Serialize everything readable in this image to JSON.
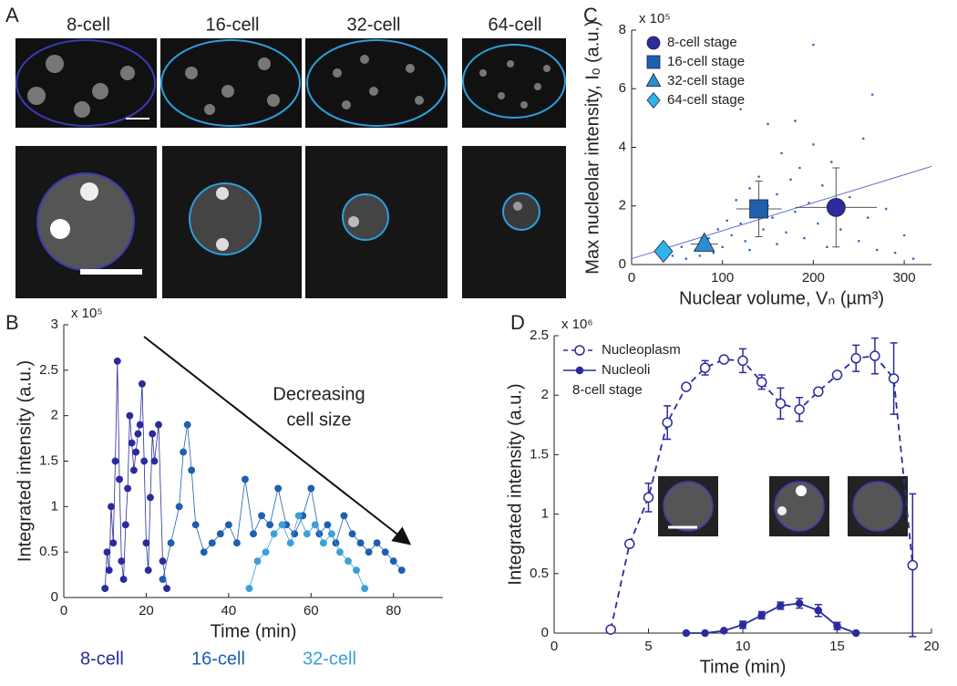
{
  "figure": {
    "panels": [
      "A",
      "B",
      "C",
      "D"
    ],
    "image_labels": [
      "8-cell",
      "16-cell",
      "32-cell",
      "64-cell"
    ]
  },
  "chart_data": [
    {
      "type": "line",
      "xlabel": "Time (min)",
      "ylabel": "Integrated intensity (a.u.)",
      "y_multiplier": "x 10⁵",
      "annotation": [
        "Decreasing",
        "cell size"
      ],
      "xlim": [
        0,
        92
      ],
      "xticks": [
        0,
        20,
        40,
        60,
        80
      ],
      "ylim": [
        0,
        3
      ],
      "yticks": [
        0,
        0.5,
        1,
        1.5,
        2,
        2.5,
        3
      ],
      "series": [
        {
          "name": "8-cell",
          "color": "#2b2b9e",
          "x": [
            10,
            10.5,
            11,
            11.5,
            12,
            12.5,
            13,
            13.5,
            14,
            14.5,
            15,
            15.5,
            16,
            16.5,
            17,
            17.5,
            18,
            18.5,
            19,
            19.5,
            20,
            20.5,
            21,
            21.5,
            22,
            23,
            24,
            25
          ],
          "values": [
            0.1,
            0.5,
            0.3,
            1.0,
            0.6,
            1.5,
            2.6,
            1.3,
            0.4,
            0.2,
            0.8,
            1.2,
            2.0,
            1.7,
            1.4,
            1.6,
            1.8,
            1.9,
            2.35,
            1.5,
            0.6,
            0.3,
            1.1,
            1.8,
            1.5,
            1.9,
            0.4,
            0.1
          ]
        },
        {
          "name": "16-cell",
          "color": "#1f5fb0",
          "x": [
            24,
            26,
            28,
            29,
            30,
            31,
            32,
            34,
            36,
            38,
            40,
            42,
            44,
            46,
            48,
            50,
            52,
            54,
            56,
            58,
            60,
            62,
            64,
            66,
            68,
            70,
            72,
            74,
            76,
            78,
            80,
            82
          ],
          "values": [
            0.2,
            0.6,
            1.0,
            1.6,
            1.9,
            1.4,
            0.8,
            0.5,
            0.6,
            0.7,
            0.8,
            0.6,
            1.3,
            0.7,
            0.9,
            0.8,
            1.2,
            0.8,
            0.7,
            0.9,
            1.2,
            0.7,
            0.8,
            0.6,
            0.9,
            0.7,
            0.6,
            0.5,
            0.6,
            0.5,
            0.4,
            0.3
          ]
        },
        {
          "name": "32-cell",
          "color": "#3aa0d8",
          "x": [
            45,
            47,
            49,
            51,
            53,
            55,
            57,
            59,
            61,
            63,
            65,
            67,
            69,
            71,
            73
          ],
          "values": [
            0.1,
            0.4,
            0.5,
            0.7,
            0.8,
            0.6,
            0.9,
            0.7,
            0.8,
            0.6,
            0.7,
            0.5,
            0.4,
            0.3,
            0.1
          ]
        }
      ]
    },
    {
      "type": "scatter",
      "xlabel": "Nuclear volume, Vₙ (µm³)",
      "ylabel": "Max nucleolar intensity, Iₒ (a.u.)",
      "y_multiplier": "x 10⁵",
      "xlim": [
        0,
        330
      ],
      "xticks": [
        0,
        100,
        200,
        300
      ],
      "ylim": [
        0,
        8
      ],
      "yticks": [
        0,
        2,
        4,
        6,
        8
      ],
      "points": {
        "color": "#2a6fc0",
        "x": [
          60,
          70,
          85,
          95,
          100,
          105,
          110,
          115,
          120,
          125,
          130,
          135,
          140,
          145,
          150,
          150,
          155,
          160,
          165,
          170,
          175,
          180,
          185,
          190,
          195,
          200,
          205,
          210,
          215,
          220,
          230,
          240,
          250,
          255,
          260,
          265,
          270,
          280,
          290,
          300,
          310,
          45,
          55,
          75,
          90,
          130,
          160,
          200,
          120,
          180
        ],
        "values": [
          0.2,
          0.5,
          0.9,
          1.2,
          0.6,
          1.5,
          1.0,
          2.2,
          1.4,
          0.8,
          2.6,
          1.7,
          3.0,
          1.2,
          2.0,
          4.8,
          1.6,
          2.4,
          3.8,
          1.1,
          2.9,
          1.8,
          3.3,
          0.9,
          2.1,
          4.1,
          1.4,
          2.7,
          0.6,
          3.5,
          1.2,
          2.3,
          0.8,
          4.3,
          1.6,
          5.8,
          0.5,
          1.9,
          0.4,
          1.0,
          0.2,
          0.3,
          0.6,
          0.3,
          0.4,
          0.5,
          0.7,
          7.5,
          5.3,
          4.9
        ]
      },
      "fit": {
        "color": "#6a6ad0",
        "x": [
          0,
          330
        ],
        "values": [
          0.2,
          3.35
        ]
      },
      "series": [
        {
          "name": "8-cell stage",
          "color": "#2b2b9e",
          "marker": "circle",
          "x": 225,
          "value": 1.95,
          "xerr": 45,
          "yerr": 1.35
        },
        {
          "name": "16-cell stage",
          "color": "#1f5fb0",
          "marker": "square",
          "x": 140,
          "value": 1.9,
          "xerr": 25,
          "yerr": 0.95
        },
        {
          "name": "32-cell stage",
          "color": "#2a8ed0",
          "marker": "triangle",
          "x": 80,
          "value": 0.7,
          "xerr": 15,
          "yerr": 0.2
        },
        {
          "name": "64-cell stage",
          "color": "#2db4ea",
          "marker": "diamond",
          "x": 35,
          "value": 0.45,
          "xerr": 10,
          "yerr": 0.15
        }
      ]
    },
    {
      "type": "line",
      "xlabel": "Time (min)",
      "ylabel": "Integrated intensity (a.u.)",
      "y_multiplier": "x 10⁶",
      "legend_note": "8-cell stage",
      "xlim": [
        0,
        20
      ],
      "xticks": [
        0,
        5,
        10,
        15,
        20
      ],
      "ylim": [
        0,
        2.5
      ],
      "yticks": [
        0,
        0.5,
        1,
        1.5,
        2,
        2.5
      ],
      "series": [
        {
          "name": "Nucleoplasm",
          "color": "#2b2b9e",
          "dashed": true,
          "open": true,
          "x": [
            3,
            4,
            5,
            6,
            7,
            8,
            9,
            10,
            11,
            12,
            13,
            14,
            15,
            16,
            17,
            18,
            19
          ],
          "values": [
            0.03,
            0.75,
            1.14,
            1.77,
            2.07,
            2.23,
            2.3,
            2.29,
            2.11,
            1.93,
            1.88,
            2.03,
            2.17,
            2.31,
            2.33,
            2.14,
            0.57
          ],
          "errors": [
            null,
            null,
            0.12,
            0.14,
            null,
            0.06,
            null,
            0.1,
            0.06,
            0.13,
            0.1,
            null,
            null,
            0.11,
            0.15,
            0.3,
            0.6
          ]
        },
        {
          "name": "Nucleoli",
          "color": "#2b2b9e",
          "dashed": false,
          "open": false,
          "x": [
            7,
            8,
            9,
            10,
            11,
            12,
            13,
            14,
            15,
            16
          ],
          "values": [
            0,
            0,
            0.02,
            0.07,
            0.15,
            0.23,
            0.25,
            0.19,
            0.06,
            0
          ],
          "errors": [
            null,
            null,
            null,
            0.03,
            0.03,
            0.03,
            0.04,
            0.05,
            0.03,
            null
          ]
        }
      ]
    }
  ]
}
